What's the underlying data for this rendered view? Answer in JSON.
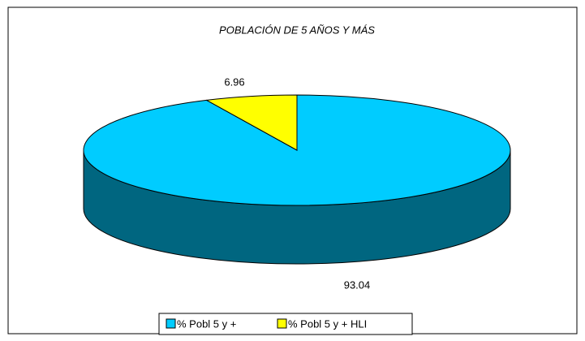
{
  "chart_data": {
    "type": "pie",
    "title": "POBLACIÓN DE 5 AÑOS Y MÁS",
    "categories": [
      "% Pobl 5 y +",
      "% Pobl 5 y + HLI"
    ],
    "values": [
      93.04,
      6.96
    ],
    "colors": [
      "#00ccff",
      "#ffff00"
    ],
    "side_color": "#006680",
    "legend": "bottom"
  }
}
